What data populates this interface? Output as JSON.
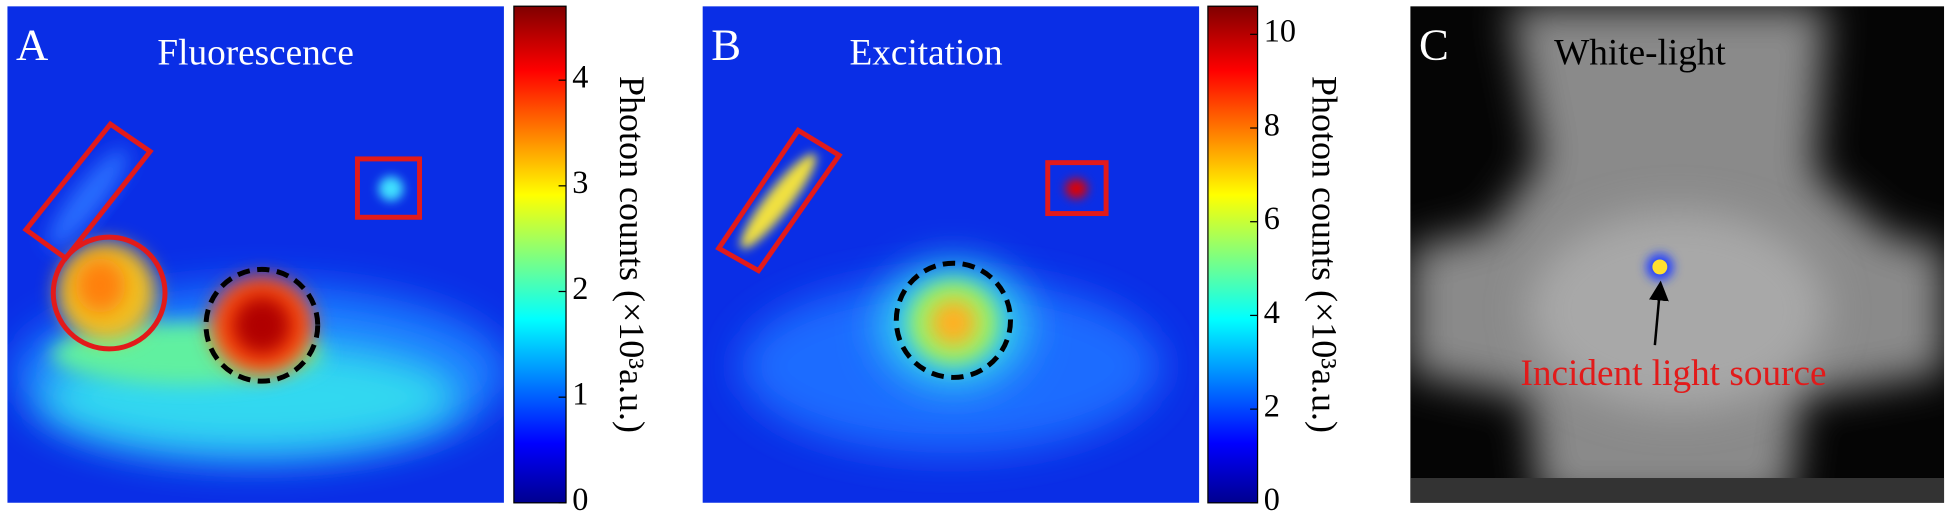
{
  "panels": [
    {
      "label": "A",
      "title": "Fluorescence",
      "colorbar": {
        "label": "Photon counts (×10³a.u.)",
        "lim": [
          0,
          4.7
        ],
        "ticks": [
          0,
          1,
          2,
          3,
          4
        ]
      }
    },
    {
      "label": "B",
      "title": "Excitation",
      "colorbar": {
        "label": "Photon counts (×10³a.u.)",
        "lim": [
          0,
          10.6
        ],
        "ticks": [
          0,
          2,
          4,
          6,
          8,
          10
        ]
      }
    },
    {
      "label": "C",
      "title": "White-light",
      "annotation": "Incident light source"
    }
  ]
}
